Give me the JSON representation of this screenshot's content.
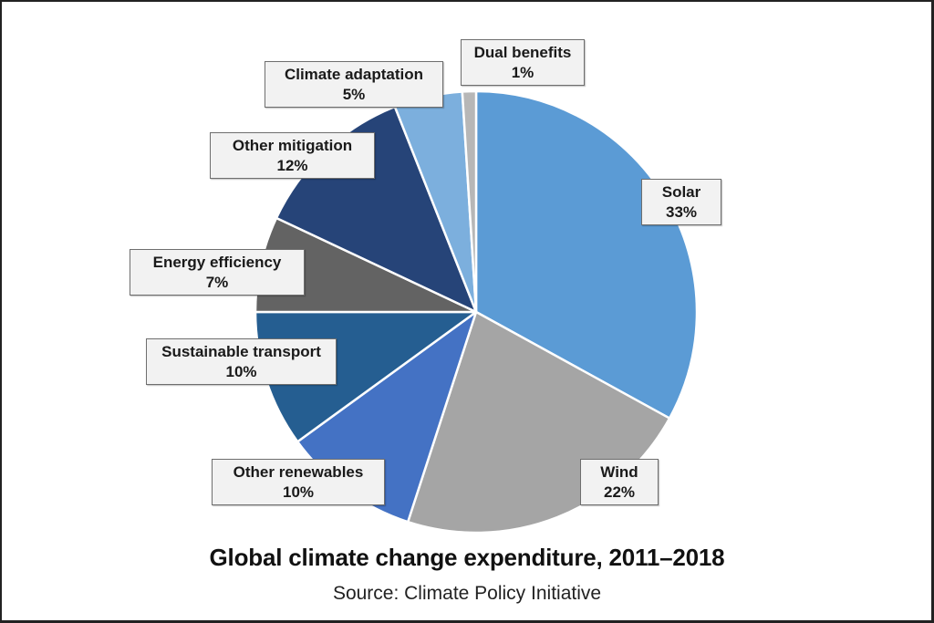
{
  "chart_data": {
    "type": "pie",
    "title": "Global climate change expenditure, 2011–2018",
    "subtitle": "Source: Climate Policy Initiative",
    "start": "top",
    "direction": "clockwise",
    "slices": [
      {
        "label": "Solar",
        "value": 33,
        "value_label": "33%",
        "color": "#5b9bd5"
      },
      {
        "label": "Wind",
        "value": 22,
        "value_label": "22%",
        "color": "#a5a5a5"
      },
      {
        "label": "Other renewables",
        "value": 10,
        "value_label": "10%",
        "color": "#4472c4"
      },
      {
        "label": "Sustainable transport",
        "value": 10,
        "value_label": "10%",
        "color": "#255e91"
      },
      {
        "label": "Energy efficiency",
        "value": 7,
        "value_label": "7%",
        "color": "#636363"
      },
      {
        "label": "Other mitigation",
        "value": 12,
        "value_label": "12%",
        "color": "#264478"
      },
      {
        "label": "Climate adaptation",
        "value": 5,
        "value_label": "5%",
        "color": "#7cafdd"
      },
      {
        "label": "Dual benefits",
        "value": 1,
        "value_label": "1%",
        "color": "#b7b7b7"
      }
    ],
    "slice_border_color": "#ffffff",
    "label_style": "callout boxes"
  }
}
